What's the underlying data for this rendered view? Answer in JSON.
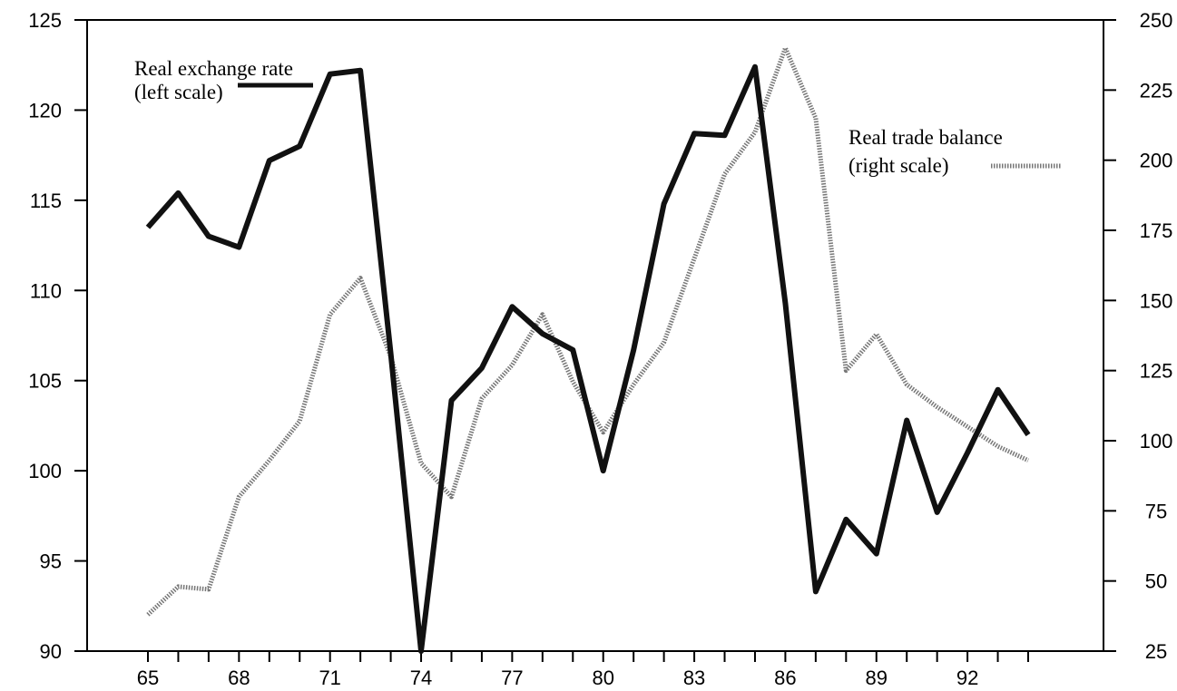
{
  "chart_data": {
    "type": "line",
    "title": "",
    "xlabel": "",
    "x": [
      65,
      66,
      67,
      68,
      69,
      70,
      71,
      72,
      73,
      74,
      75,
      76,
      77,
      78,
      79,
      80,
      81,
      82,
      83,
      84,
      85,
      86,
      87,
      88,
      89,
      90,
      91,
      92,
      93,
      94
    ],
    "x_tick_labels": [
      "65",
      "68",
      "71",
      "74",
      "77",
      "80",
      "83",
      "86",
      "89",
      "92"
    ],
    "x_tick_positions": [
      65,
      66,
      67,
      68,
      69,
      70,
      71,
      72,
      73,
      74,
      75,
      76,
      77,
      78,
      79,
      80,
      81,
      82,
      83,
      84,
      85,
      86,
      87,
      88,
      89,
      90,
      91,
      92,
      93,
      94
    ],
    "left_axis": {
      "label": "",
      "ylim": [
        90,
        125
      ],
      "ticks": [
        90,
        95,
        100,
        105,
        110,
        115,
        120,
        125
      ],
      "tick_labels": [
        "90",
        "95",
        "100",
        "105",
        "110",
        "115",
        "120",
        "125"
      ]
    },
    "right_axis": {
      "label": "",
      "ylim": [
        25,
        250
      ],
      "ticks": [
        25,
        50,
        75,
        100,
        125,
        150,
        175,
        200,
        225,
        250
      ],
      "tick_labels": [
        "25",
        "50",
        "75",
        "100",
        "125",
        "150",
        "175",
        "200",
        "225",
        "250"
      ]
    },
    "series": [
      {
        "name": "Real exchange rate",
        "name_suffix": "(left scale)",
        "axis": "left",
        "style": "solid",
        "color": "#111111",
        "values": [
          113.5,
          115.4,
          113.0,
          112.4,
          117.2,
          118.0,
          122.0,
          122.2,
          106.5,
          90.0,
          103.9,
          105.7,
          109.1,
          107.6,
          106.7,
          100.0,
          106.7,
          114.8,
          118.7,
          118.6,
          122.4,
          109.3,
          93.3,
          97.3,
          95.4,
          102.8,
          97.7,
          101.0,
          104.5,
          102.0
        ]
      },
      {
        "name": "Real trade balance",
        "name_suffix": "(right scale)",
        "axis": "right",
        "style": "dotted",
        "color": "#777777",
        "values": [
          38,
          48,
          47,
          80,
          93,
          107,
          145,
          158,
          130,
          92,
          80,
          115,
          127,
          145,
          121,
          103,
          120,
          135,
          165,
          195,
          210,
          240,
          215,
          125,
          138,
          120,
          112,
          105,
          98,
          93
        ]
      }
    ],
    "legend": [
      {
        "line1": "Real exchange rate",
        "line2": "(left scale)",
        "placement": "top-left"
      },
      {
        "line1": "Real trade balance",
        "line2": "(right scale)",
        "placement": "top-right"
      }
    ],
    "grid": false
  }
}
